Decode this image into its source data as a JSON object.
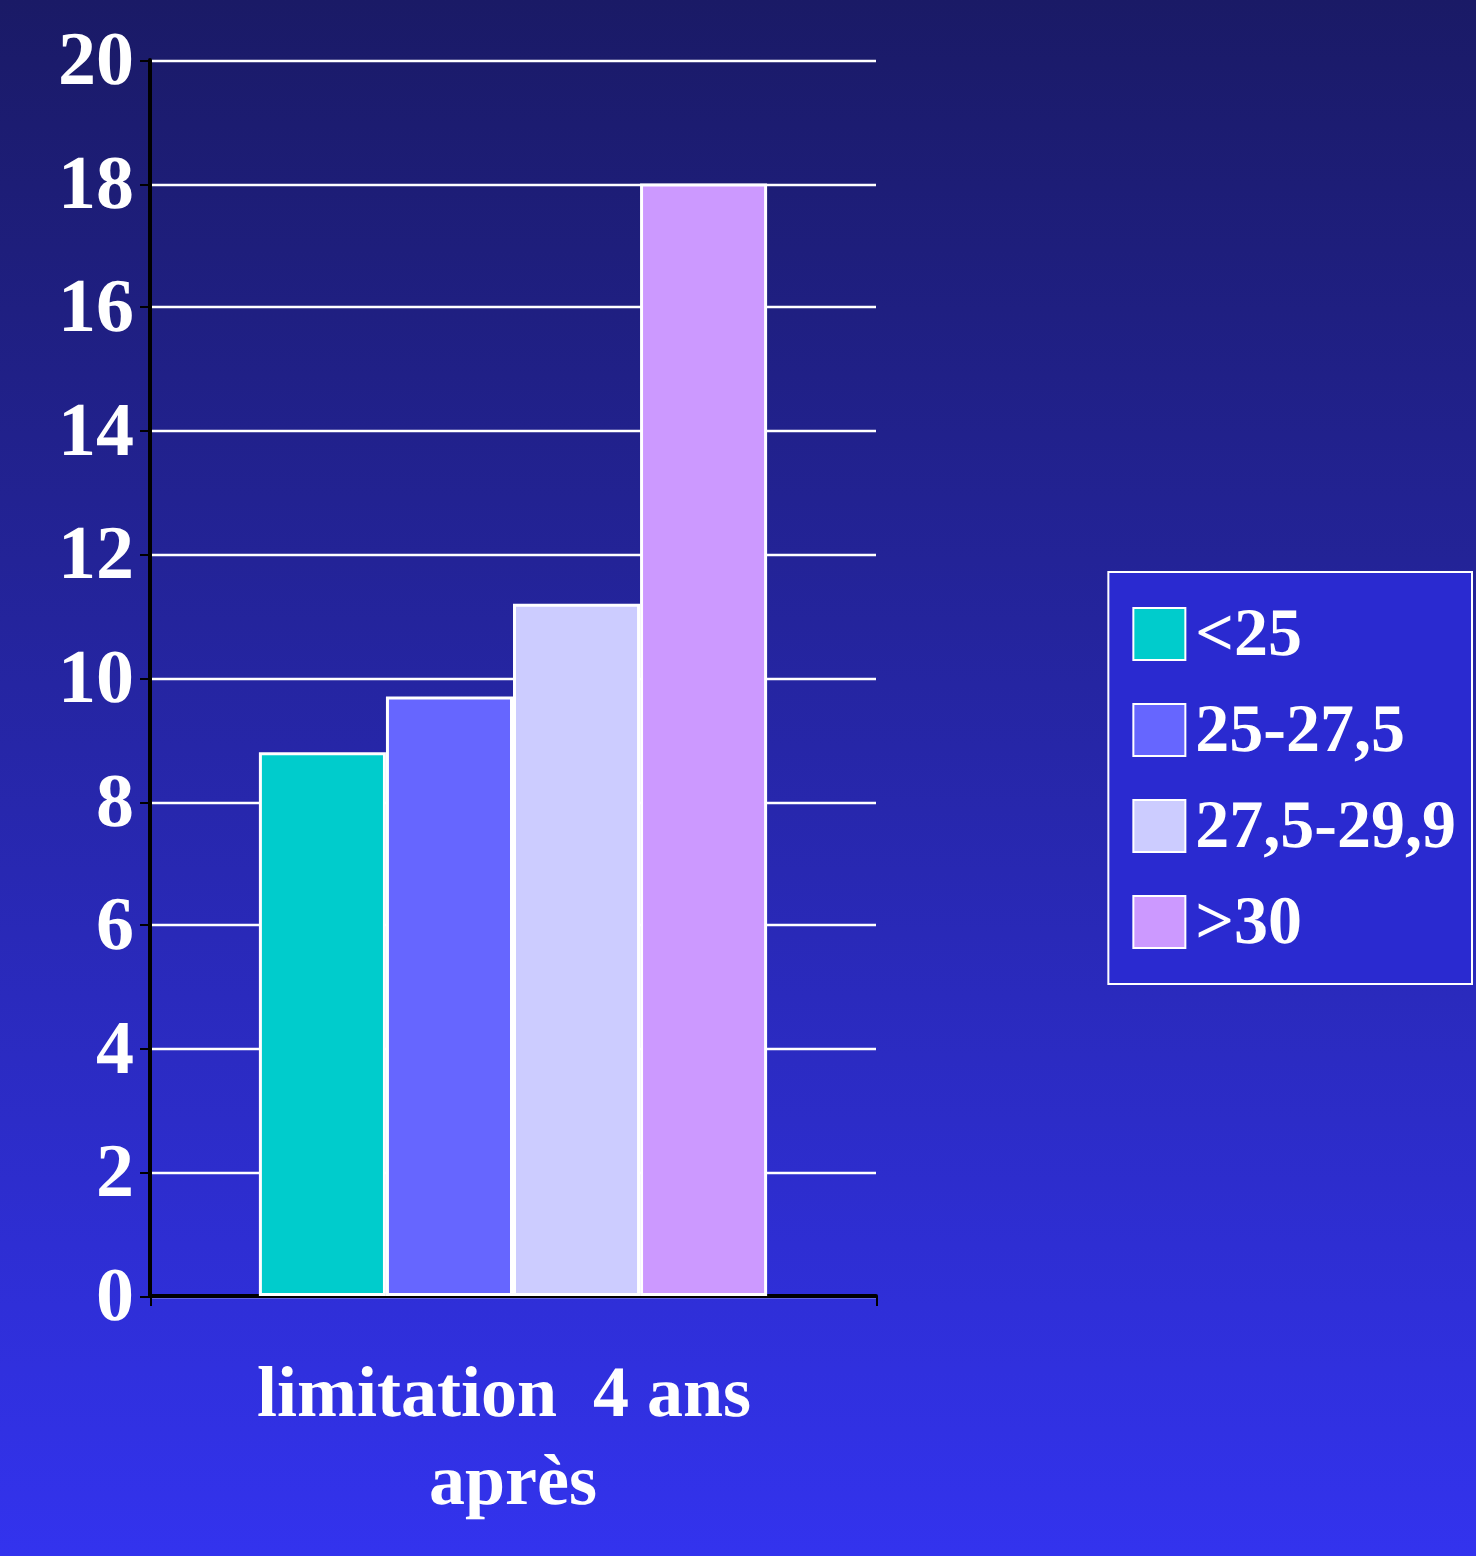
{
  "chart_data": {
    "type": "bar",
    "categories": [
      "limitation  4 ans après"
    ],
    "series": [
      {
        "name": "<25",
        "color": "#00cccc",
        "values": [
          8.8
        ]
      },
      {
        "name": "25-27,5",
        "color": "#6666ff",
        "values": [
          9.7
        ]
      },
      {
        "name": "27,5-29,9",
        "color": "#ccccff",
        "values": [
          11.2
        ]
      },
      {
        "name": ">30",
        "color": "#cc99ff",
        "values": [
          18
        ]
      }
    ],
    "ylim": [
      0,
      20
    ],
    "yticks": [
      0,
      2,
      4,
      6,
      8,
      10,
      12,
      14,
      16,
      18,
      20
    ],
    "grid": "y",
    "legend": "right"
  }
}
